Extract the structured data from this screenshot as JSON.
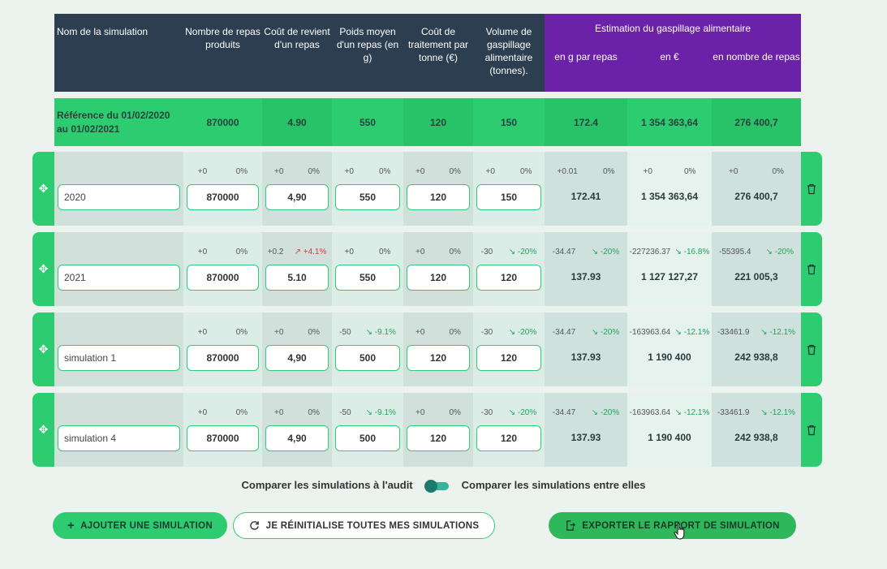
{
  "header": {
    "col_name": "Nom de la simulation",
    "col_repas": "Nombre de repas produits",
    "col_cout": "Coût de revient d'un repas",
    "col_poids": "Poids moyen d'un repas (en g)",
    "col_traitement": "Coût de traitement par tonne (€)",
    "col_volume": "Volume de gaspillage alimentaire (tonnes).",
    "estimation_title": "Estimation du gaspillage alimentaire",
    "col_g": "en g par repas",
    "col_eur": "en €",
    "col_nb": "en nombre de repas"
  },
  "reference": {
    "label": "Référence du 01/02/2020 au 01/02/2021",
    "repas": "870000",
    "cout": "4.90",
    "poids": "550",
    "traitement": "120",
    "volume": "150",
    "g": "172.4",
    "eur": "1 354 363,64",
    "nb": "276 400,7"
  },
  "rows": [
    {
      "name": "2020",
      "d": [
        [
          "+0",
          "0%",
          ""
        ],
        [
          "+0",
          "0%",
          ""
        ],
        [
          "+0",
          "0%",
          ""
        ],
        [
          "+0",
          "0%",
          ""
        ],
        [
          "+0",
          "0%",
          ""
        ],
        [
          "+0.01",
          "0%",
          ""
        ],
        [
          "+0",
          "0%",
          ""
        ],
        [
          "+0",
          "0%",
          ""
        ]
      ],
      "repas": "870000",
      "cout": "4,90",
      "poids": "550",
      "traitement": "120",
      "volume": "150",
      "g": "172.41",
      "eur": "1 354 363,64",
      "nb": "276 400,7"
    },
    {
      "name": "2021",
      "d": [
        [
          "+0",
          "0%",
          ""
        ],
        [
          "+0.2",
          "↗ +4.1%",
          "pos"
        ],
        [
          "+0",
          "0%",
          ""
        ],
        [
          "+0",
          "0%",
          ""
        ],
        [
          "-30",
          "↘ -20%",
          "neg"
        ],
        [
          "-34.47",
          "↘ -20%",
          "neg"
        ],
        [
          "-227236.37",
          "↘ -16.8%",
          "neg"
        ],
        [
          "-55395.4",
          "↘ -20%",
          "neg"
        ]
      ],
      "repas": "870000",
      "cout": "5.10",
      "poids": "550",
      "traitement": "120",
      "volume": "120",
      "g": "137.93",
      "eur": "1 127 127,27",
      "nb": "221 005,3"
    },
    {
      "name": "simulation 1",
      "d": [
        [
          "+0",
          "0%",
          ""
        ],
        [
          "+0",
          "0%",
          ""
        ],
        [
          "-50",
          "↘ -9.1%",
          "neg"
        ],
        [
          "+0",
          "0%",
          ""
        ],
        [
          "-30",
          "↘ -20%",
          "neg"
        ],
        [
          "-34.47",
          "↘ -20%",
          "neg"
        ],
        [
          "-163963.64",
          "↘ -12.1%",
          "neg"
        ],
        [
          "-33461.9",
          "↘ -12.1%",
          "neg"
        ]
      ],
      "repas": "870000",
      "cout": "4,90",
      "poids": "500",
      "traitement": "120",
      "volume": "120",
      "g": "137.93",
      "eur": "1 190 400",
      "nb": "242 938,8"
    },
    {
      "name": "simulation 4",
      "d": [
        [
          "+0",
          "0%",
          ""
        ],
        [
          "+0",
          "0%",
          ""
        ],
        [
          "-50",
          "↘ -9.1%",
          "neg"
        ],
        [
          "+0",
          "0%",
          ""
        ],
        [
          "-30",
          "↘ -20%",
          "neg"
        ],
        [
          "-34.47",
          "↘ -20%",
          "neg"
        ],
        [
          "-163963.64",
          "↘ -12.1%",
          "neg"
        ],
        [
          "-33461.9",
          "↘ -12.1%",
          "neg"
        ]
      ],
      "repas": "870000",
      "cout": "4,90",
      "poids": "500",
      "traitement": "120",
      "volume": "120",
      "g": "137.93",
      "eur": "1 190 400",
      "nb": "242 938,8"
    }
  ],
  "toggle": {
    "left_label": "Comparer les simulations à l'audit",
    "right_label": "Comparer les simulations entre elles"
  },
  "buttons": {
    "add": "AJOUTER UNE SIMULATION",
    "reset": "JE RÉINITIALISE TOUTES MES SIMULATIONS",
    "export": "EXPORTER LE RAPPORT DE SIMULATION"
  },
  "colors": {
    "accent": "#2ecc71",
    "header_dark": "#2c3e50",
    "header_purple": "#6b21a8",
    "negative": "#22a35a",
    "positive": "#d63b3b"
  }
}
